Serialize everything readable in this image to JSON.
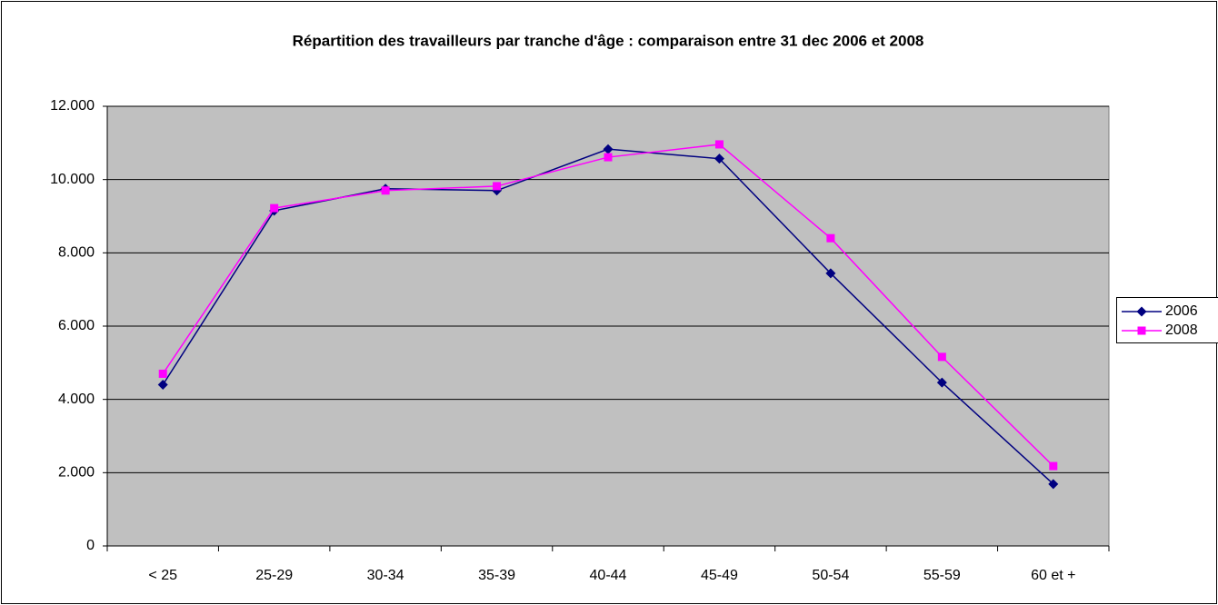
{
  "chart_data": {
    "type": "line",
    "title": "Répartition des travailleurs par tranche d'âge : comparaison entre 31 dec 2006 et 2008",
    "categories": [
      "< 25",
      "25-29",
      "30-34",
      "35-39",
      "40-44",
      "45-49",
      "50-54",
      "55-59",
      "60 et +"
    ],
    "series": [
      {
        "name": "2006",
        "color": "#000080",
        "marker": "diamond",
        "values": [
          4400,
          9150,
          9750,
          9700,
          10830,
          10570,
          7440,
          4460,
          1690
        ]
      },
      {
        "name": "2008",
        "color": "#ff00ff",
        "marker": "square",
        "values": [
          4700,
          9220,
          9700,
          9820,
          10610,
          10960,
          8400,
          5160,
          2180
        ]
      }
    ],
    "ylim": [
      0,
      12000
    ],
    "yticks": [
      0,
      {
        "value": 2000,
        "label": "2.000"
      },
      {
        "value": 4000,
        "label": "4.000"
      },
      {
        "value": 6000,
        "label": "6.000"
      },
      {
        "value": 8000,
        "label": "8.000"
      },
      {
        "value": 10000,
        "label": "10.000"
      },
      {
        "value": 12000,
        "label": "12.000"
      }
    ],
    "grid": true,
    "legend": "right"
  }
}
